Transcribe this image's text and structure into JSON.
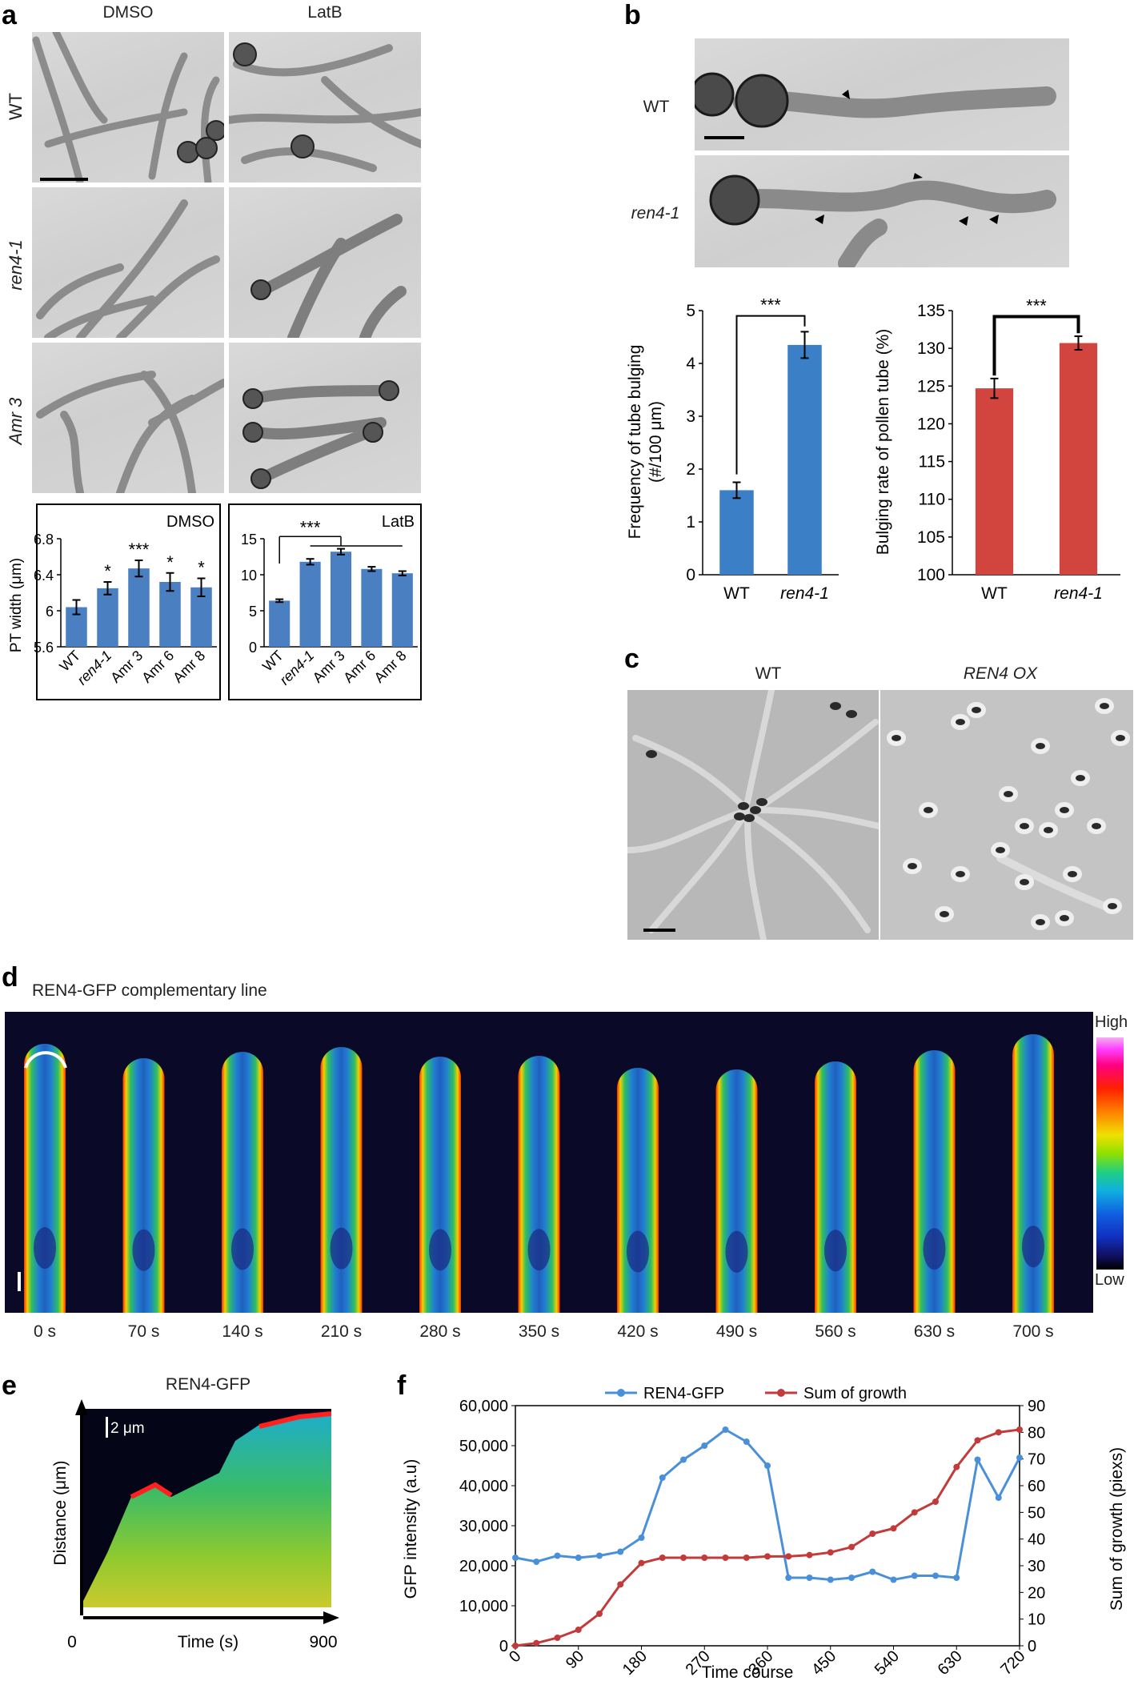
{
  "panels": {
    "a": {
      "label": "a",
      "col_labels": [
        "DMSO",
        "LatB"
      ],
      "row_labels": [
        "WT",
        "ren4-1",
        "Amr 3"
      ]
    },
    "b": {
      "label": "b",
      "row_labels": [
        "WT",
        "ren4-1"
      ]
    },
    "c": {
      "label": "c",
      "col_labels": [
        "WT",
        "REN4 OX"
      ]
    },
    "d": {
      "label": "d",
      "title": "REN4-GFP complementary line",
      "times": [
        "0 s",
        "70 s",
        "140 s",
        "210 s",
        "280 s",
        "350 s",
        "420 s",
        "490 s",
        "560 s",
        "630 s",
        "700 s"
      ],
      "scale_high": "High",
      "scale_low": "Low"
    },
    "e": {
      "label": "e",
      "title": "REN4-GFP",
      "scalebar": "2 μm",
      "ylabel": "Distance (μm)",
      "xlabel": "Time (s)",
      "x_start": "0",
      "x_end": "900"
    },
    "f": {
      "label": "f"
    }
  },
  "chart_data": [
    {
      "id": "a-dmso",
      "type": "bar",
      "title": "DMSO",
      "ylabel": "PT width (μm)",
      "categories": [
        "WT",
        "ren4-1",
        "Amr 3",
        "Amr 6",
        "Amr 8"
      ],
      "values": [
        6.04,
        6.25,
        6.47,
        6.32,
        6.26
      ],
      "errors": [
        0.08,
        0.07,
        0.09,
        0.1,
        0.1
      ],
      "significance": [
        "",
        "*",
        "***",
        "*",
        "*"
      ],
      "ylim": [
        5.6,
        6.8
      ],
      "yticks": [
        "5.6",
        "6",
        "6.4",
        "6.8"
      ],
      "color": "#4a7fc1"
    },
    {
      "id": "a-latb",
      "type": "bar",
      "title": "LatB",
      "categories": [
        "WT",
        "ren4-1",
        "Amr 3",
        "Amr 6",
        "Amr 8"
      ],
      "values": [
        6.4,
        11.8,
        13.2,
        10.8,
        10.2
      ],
      "errors": [
        0.2,
        0.4,
        0.4,
        0.3,
        0.3
      ],
      "significance_label": "***",
      "ylim": [
        0,
        15
      ],
      "yticks": [
        "0",
        "5",
        "10",
        "15"
      ],
      "color": "#4a7fc1"
    },
    {
      "id": "b-frequency",
      "type": "bar",
      "ylabel": "Frequency of tube bulging (#/100 μm)",
      "categories": [
        "WT",
        "ren4-1"
      ],
      "values": [
        1.6,
        4.35
      ],
      "errors": [
        0.15,
        0.25
      ],
      "significance_label": "***",
      "ylim": [
        0,
        5
      ],
      "yticks": [
        "0",
        "1",
        "2",
        "3",
        "4",
        "5"
      ],
      "color": "#3b80c6"
    },
    {
      "id": "b-bulging-rate",
      "type": "bar",
      "ylabel": "Bulging rate of pollen tube (%)",
      "categories": [
        "WT",
        "ren4-1"
      ],
      "values": [
        124.7,
        130.7
      ],
      "errors": [
        1.3,
        0.9
      ],
      "significance_label": "***",
      "ylim": [
        100,
        135
      ],
      "yticks": [
        "100",
        "105",
        "110",
        "115",
        "120",
        "125",
        "130",
        "135"
      ],
      "color": "#d2453f"
    },
    {
      "id": "f-line",
      "type": "line",
      "xlabel": "Time course",
      "ylabel": "GFP intensity (a.u)",
      "y2label": "Sum of growth (piexs)",
      "xticks": [
        "0",
        "90",
        "180",
        "270",
        "360",
        "450",
        "540",
        "630",
        "720"
      ],
      "yticks": [
        "0",
        "10,000",
        "20,000",
        "30,000",
        "40,000",
        "50,000",
        "60,000"
      ],
      "y2ticks": [
        "0",
        "10",
        "20",
        "30",
        "40",
        "50",
        "60",
        "70",
        "80",
        "90"
      ],
      "xlim": [
        0,
        720
      ],
      "ylim": [
        0,
        60000
      ],
      "y2lim": [
        0,
        90
      ],
      "legend_position": "top",
      "series": [
        {
          "name": "REN4-GFP",
          "axis": "left",
          "color": "#4a90d9",
          "x": [
            0,
            30,
            60,
            90,
            120,
            150,
            180,
            210,
            240,
            270,
            300,
            330,
            360,
            390,
            420,
            450,
            480,
            510,
            540,
            570,
            600,
            630,
            660,
            690,
            720
          ],
          "values": [
            22000,
            21000,
            22500,
            22000,
            22500,
            23500,
            27000,
            42000,
            46500,
            50000,
            54000,
            51000,
            45000,
            17000,
            17000,
            16500,
            17000,
            18500,
            16500,
            17500,
            17500,
            17000,
            46500,
            37000,
            47000
          ]
        },
        {
          "name": "Sum of growth",
          "axis": "right",
          "color": "#c23b3b",
          "x": [
            0,
            30,
            60,
            90,
            120,
            150,
            180,
            210,
            240,
            270,
            300,
            330,
            360,
            390,
            420,
            450,
            480,
            510,
            540,
            570,
            600,
            630,
            660,
            690,
            720
          ],
          "values": [
            0,
            1,
            3,
            6,
            12,
            23,
            31,
            33,
            33,
            33,
            33,
            33,
            33.5,
            33.5,
            34,
            35,
            37,
            42,
            44,
            50,
            54,
            67,
            77,
            80,
            81
          ]
        }
      ]
    }
  ]
}
